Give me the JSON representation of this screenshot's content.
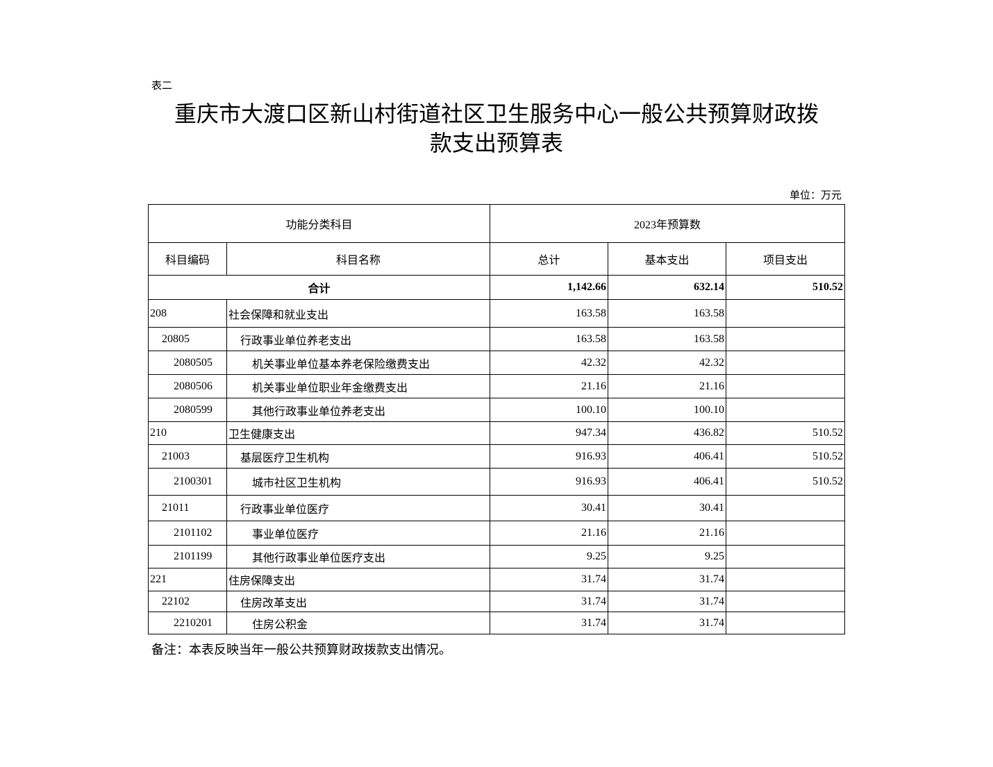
{
  "doc": {
    "label": "表二",
    "title_line1": "重庆市大渡口区新山村街道社区卫生服务中心一般公共预算财政拨",
    "title_line2": "款支出预算表",
    "unit": "单位：万元",
    "note": "备注：本表反映当年一般公共预算财政拨款支出情况。"
  },
  "table": {
    "group_header_left": "功能分类科目",
    "group_header_right": "2023年预算数",
    "headers": [
      "科目编码",
      "科目名称",
      "总计",
      "基本支出",
      "项目支出"
    ],
    "total": {
      "label": "合计",
      "total": "1,142.66",
      "basic": "632.14",
      "project": "510.52"
    },
    "rows": [
      {
        "code": "208",
        "name": "社会保障和就业支出",
        "level": 0,
        "total": "163.58",
        "basic": "163.58",
        "project": ""
      },
      {
        "code": "20805",
        "name": "行政事业单位养老支出",
        "level": 1,
        "total": "163.58",
        "basic": "163.58",
        "project": ""
      },
      {
        "code": "2080505",
        "name": "机关事业单位基本养老保险缴费支出",
        "level": 2,
        "total": "42.32",
        "basic": "42.32",
        "project": ""
      },
      {
        "code": "2080506",
        "name": "机关事业单位职业年金缴费支出",
        "level": 2,
        "total": "21.16",
        "basic": "21.16",
        "project": ""
      },
      {
        "code": "2080599",
        "name": "其他行政事业单位养老支出",
        "level": 2,
        "total": "100.10",
        "basic": "100.10",
        "project": ""
      },
      {
        "code": "210",
        "name": "卫生健康支出",
        "level": 0,
        "total": "947.34",
        "basic": "436.82",
        "project": "510.52"
      },
      {
        "code": "21003",
        "name": "基层医疗卫生机构",
        "level": 1,
        "total": "916.93",
        "basic": "406.41",
        "project": "510.52"
      },
      {
        "code": "2100301",
        "name": "城市社区卫生机构",
        "level": 2,
        "total": "916.93",
        "basic": "406.41",
        "project": "510.52"
      },
      {
        "code": "21011",
        "name": "行政事业单位医疗",
        "level": 1,
        "total": "30.41",
        "basic": "30.41",
        "project": ""
      },
      {
        "code": "2101102",
        "name": "事业单位医疗",
        "level": 2,
        "total": "21.16",
        "basic": "21.16",
        "project": ""
      },
      {
        "code": "2101199",
        "name": "其他行政事业单位医疗支出",
        "level": 2,
        "total": "9.25",
        "basic": "9.25",
        "project": ""
      },
      {
        "code": "221",
        "name": "住房保障支出",
        "level": 0,
        "total": "31.74",
        "basic": "31.74",
        "project": ""
      },
      {
        "code": "22102",
        "name": "住房改革支出",
        "level": 1,
        "total": "31.74",
        "basic": "31.74",
        "project": ""
      },
      {
        "code": "2210201",
        "name": "住房公积金",
        "level": 2,
        "total": "31.74",
        "basic": "31.74",
        "project": ""
      }
    ]
  }
}
